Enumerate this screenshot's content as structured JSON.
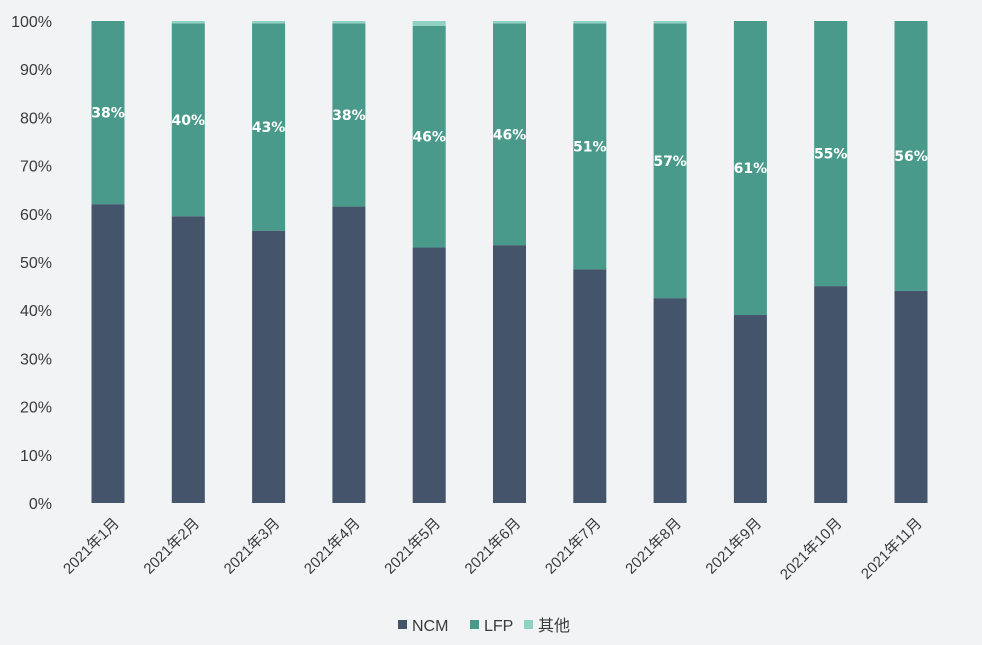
{
  "chart_data": {
    "type": "bar",
    "stacked": true,
    "categories": [
      "2021年1月",
      "2021年2月",
      "2021年3月",
      "2021年4月",
      "2021年5月",
      "2021年6月",
      "2021年7月",
      "2021年8月",
      "2021年9月",
      "2021年10月",
      "2021年11月"
    ],
    "series": [
      {
        "name": "NCM",
        "color": "#44546a",
        "values": [
          62,
          59.5,
          56.5,
          61.5,
          53,
          53.5,
          48.5,
          42.5,
          39,
          45,
          44
        ]
      },
      {
        "name": "LFP",
        "color": "#4a9a8c",
        "values": [
          38,
          40,
          43,
          38,
          46,
          46,
          51,
          57,
          61,
          55,
          56
        ]
      },
      {
        "name": "其他",
        "color": "#8fd1c3",
        "values": [
          0,
          0.5,
          0.5,
          0.5,
          1,
          0.5,
          0.5,
          0.5,
          0,
          0,
          0
        ]
      }
    ],
    "data_labels": [
      "38%",
      "40%",
      "43%",
      "38%",
      "46%",
      "46%",
      "51%",
      "57%",
      "61%",
      "55%",
      "56%"
    ],
    "y_ticks": [
      "0%",
      "10%",
      "20%",
      "30%",
      "40%",
      "50%",
      "60%",
      "70%",
      "80%",
      "90%",
      "100%"
    ],
    "ylim": [
      0,
      100
    ],
    "grid": false,
    "legend_position": "bottom"
  }
}
